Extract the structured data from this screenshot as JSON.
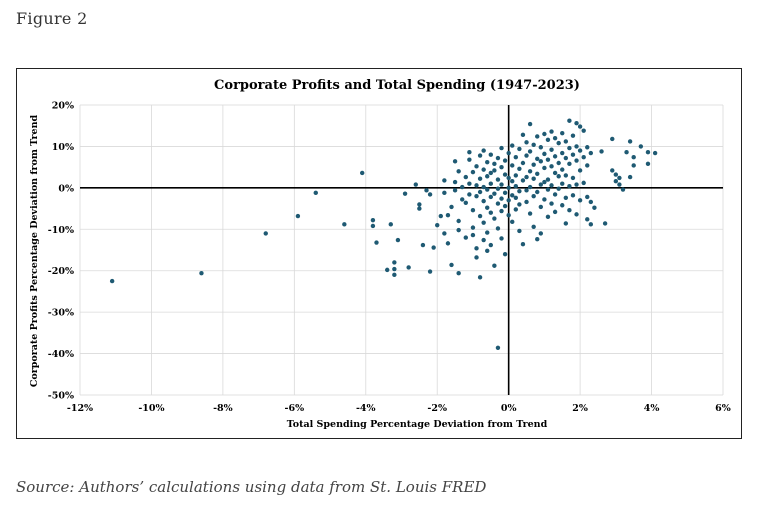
{
  "figure_label": "Figure 2",
  "source_note": "Source: Authors’ calculations using data from St. Louis FRED",
  "colors": {
    "points": "#1f5a73",
    "axis": "#000000",
    "grid": "#d9d9d9"
  },
  "chart_data": {
    "type": "scatter",
    "title": "Corporate Profits and Total Spending (1947-2023)",
    "xlabel": "Total Spending Percentage Deviation from Trend",
    "ylabel": "Corporate Profits Percentage Deviation from Trend",
    "xlim": [
      -12,
      6
    ],
    "ylim": [
      -50,
      20
    ],
    "x_ticks": [
      -12,
      -10,
      -8,
      -6,
      -4,
      -2,
      0,
      2,
      4,
      6
    ],
    "x_tick_labels": [
      "-12%",
      "-10%",
      "-8%",
      "-6%",
      "-4%",
      "-2%",
      "0%",
      "2%",
      "4%",
      "6%"
    ],
    "y_ticks": [
      20,
      10,
      0,
      -10,
      -20,
      -30,
      -40,
      -50
    ],
    "y_tick_labels": [
      "20%",
      "10%",
      "0%",
      "-10%",
      "-20%",
      "-30%",
      "-40%",
      "-50%"
    ],
    "grid": true,
    "points": [
      [
        -11.1,
        -22.5
      ],
      [
        -8.6,
        -20.6
      ],
      [
        -6.8,
        -11.0
      ],
      [
        -5.9,
        -6.8
      ],
      [
        -5.4,
        -1.2
      ],
      [
        -4.6,
        -8.8
      ],
      [
        -4.1,
        3.6
      ],
      [
        -3.8,
        -7.8
      ],
      [
        -3.8,
        -9.2
      ],
      [
        -3.7,
        -13.2
      ],
      [
        -3.3,
        -8.8
      ],
      [
        -3.4,
        -19.8
      ],
      [
        -3.2,
        -18.0
      ],
      [
        -3.2,
        -19.6
      ],
      [
        -3.2,
        -21.0
      ],
      [
        -3.1,
        -12.6
      ],
      [
        -2.9,
        -1.4
      ],
      [
        -2.8,
        -19.2
      ],
      [
        -2.6,
        0.8
      ],
      [
        -2.5,
        -4.0
      ],
      [
        -2.5,
        -5.0
      ],
      [
        -2.4,
        -13.8
      ],
      [
        -2.3,
        -0.6
      ],
      [
        -2.2,
        -1.6
      ],
      [
        -2.2,
        -20.2
      ],
      [
        -2.1,
        -14.4
      ],
      [
        -2.0,
        -9.0
      ],
      [
        -1.9,
        -6.8
      ],
      [
        -1.8,
        1.8
      ],
      [
        -1.8,
        -1.2
      ],
      [
        -1.8,
        -11.0
      ],
      [
        -1.7,
        -6.6
      ],
      [
        -1.7,
        -13.4
      ],
      [
        -1.6,
        -4.6
      ],
      [
        -1.6,
        -18.6
      ],
      [
        -1.5,
        6.4
      ],
      [
        -1.5,
        1.4
      ],
      [
        -1.5,
        -0.6
      ],
      [
        -1.4,
        4.0
      ],
      [
        -1.4,
        -8.0
      ],
      [
        -1.4,
        -10.2
      ],
      [
        -1.4,
        -20.6
      ],
      [
        -1.3,
        0.2
      ],
      [
        -1.3,
        -2.8
      ],
      [
        -1.2,
        2.6
      ],
      [
        -1.2,
        -3.6
      ],
      [
        -1.2,
        -12.0
      ],
      [
        -1.1,
        8.6
      ],
      [
        -1.1,
        6.8
      ],
      [
        -1.1,
        1.0
      ],
      [
        -1.1,
        -1.6
      ],
      [
        -1.0,
        3.8
      ],
      [
        -1.0,
        -5.4
      ],
      [
        -1.0,
        -9.6
      ],
      [
        -1.0,
        -11.4
      ],
      [
        -0.9,
        5.2
      ],
      [
        -0.9,
        0.6
      ],
      [
        -0.9,
        -2.0
      ],
      [
        -0.9,
        -14.6
      ],
      [
        -0.9,
        -16.8
      ],
      [
        -0.8,
        7.8
      ],
      [
        -0.8,
        2.2
      ],
      [
        -0.8,
        -1.0
      ],
      [
        -0.8,
        -6.8
      ],
      [
        -0.8,
        -21.6
      ],
      [
        -0.7,
        9.0
      ],
      [
        -0.7,
        4.4
      ],
      [
        -0.7,
        0.2
      ],
      [
        -0.7,
        -3.2
      ],
      [
        -0.7,
        -8.4
      ],
      [
        -0.7,
        -12.6
      ],
      [
        -0.6,
        6.2
      ],
      [
        -0.6,
        2.8
      ],
      [
        -0.6,
        -0.4
      ],
      [
        -0.6,
        -4.8
      ],
      [
        -0.6,
        -10.8
      ],
      [
        -0.6,
        -15.2
      ],
      [
        -0.5,
        8.0
      ],
      [
        -0.5,
        3.6
      ],
      [
        -0.5,
        1.0
      ],
      [
        -0.5,
        -2.2
      ],
      [
        -0.5,
        -6.0
      ],
      [
        -0.5,
        -13.8
      ],
      [
        -0.4,
        5.8
      ],
      [
        -0.4,
        4.2
      ],
      [
        -0.4,
        -1.4
      ],
      [
        -0.4,
        -7.4
      ],
      [
        -0.4,
        -18.8
      ],
      [
        -0.3,
        7.2
      ],
      [
        -0.3,
        2.0
      ],
      [
        -0.3,
        -0.2
      ],
      [
        -0.3,
        -3.8
      ],
      [
        -0.3,
        -9.8
      ],
      [
        -0.3,
        -38.6
      ],
      [
        -0.2,
        9.6
      ],
      [
        -0.2,
        5.0
      ],
      [
        -0.2,
        0.8
      ],
      [
        -0.2,
        -2.6
      ],
      [
        -0.2,
        -5.6
      ],
      [
        -0.2,
        -12.2
      ],
      [
        -0.1,
        6.6
      ],
      [
        -0.1,
        3.2
      ],
      [
        -0.1,
        -1.2
      ],
      [
        -0.1,
        -4.4
      ],
      [
        -0.1,
        -16.0
      ],
      [
        0.0,
        8.4
      ],
      [
        0.0,
        2.4
      ],
      [
        0.0,
        0.0
      ],
      [
        0.0,
        -3.0
      ],
      [
        0.0,
        -6.6
      ],
      [
        0.1,
        10.2
      ],
      [
        0.1,
        5.4
      ],
      [
        0.1,
        1.6
      ],
      [
        0.1,
        -1.8
      ],
      [
        0.1,
        -8.2
      ],
      [
        0.2,
        7.4
      ],
      [
        0.2,
        3.0
      ],
      [
        0.2,
        0.4
      ],
      [
        0.2,
        -2.4
      ],
      [
        0.2,
        -5.2
      ],
      [
        0.3,
        9.4
      ],
      [
        0.3,
        4.6
      ],
      [
        0.3,
        -0.8
      ],
      [
        0.3,
        -4.0
      ],
      [
        0.3,
        -10.4
      ],
      [
        0.4,
        12.8
      ],
      [
        0.4,
        6.0
      ],
      [
        0.4,
        1.8
      ],
      [
        0.4,
        -13.6
      ],
      [
        0.5,
        11.0
      ],
      [
        0.5,
        7.8
      ],
      [
        0.5,
        2.6
      ],
      [
        0.5,
        -0.6
      ],
      [
        0.5,
        -3.4
      ],
      [
        0.6,
        15.4
      ],
      [
        0.6,
        8.8
      ],
      [
        0.6,
        4.0
      ],
      [
        0.6,
        0.2
      ],
      [
        0.6,
        -6.2
      ],
      [
        0.7,
        10.4
      ],
      [
        0.7,
        5.6
      ],
      [
        0.7,
        2.2
      ],
      [
        0.7,
        -2.0
      ],
      [
        0.7,
        -9.4
      ],
      [
        0.8,
        12.4
      ],
      [
        0.8,
        7.0
      ],
      [
        0.8,
        3.4
      ],
      [
        0.8,
        -1.0
      ],
      [
        0.8,
        -12.4
      ],
      [
        0.9,
        9.8
      ],
      [
        0.9,
        6.4
      ],
      [
        0.9,
        0.8
      ],
      [
        0.9,
        -4.6
      ],
      [
        0.9,
        -11.0
      ],
      [
        1.0,
        13.0
      ],
      [
        1.0,
        8.2
      ],
      [
        1.0,
        4.8
      ],
      [
        1.0,
        1.4
      ],
      [
        1.0,
        -2.8
      ],
      [
        1.1,
        11.6
      ],
      [
        1.1,
        6.8
      ],
      [
        1.1,
        2.0
      ],
      [
        1.1,
        -0.4
      ],
      [
        1.1,
        -7.0
      ],
      [
        1.2,
        13.6
      ],
      [
        1.2,
        9.2
      ],
      [
        1.2,
        5.2
      ],
      [
        1.2,
        0.6
      ],
      [
        1.2,
        -3.8
      ],
      [
        1.3,
        12.0
      ],
      [
        1.3,
        7.6
      ],
      [
        1.3,
        3.6
      ],
      [
        1.3,
        -1.6
      ],
      [
        1.3,
        -5.8
      ],
      [
        1.4,
        10.8
      ],
      [
        1.4,
        6.0
      ],
      [
        1.4,
        2.8
      ],
      [
        1.4,
        -0.2
      ],
      [
        1.5,
        13.2
      ],
      [
        1.5,
        8.4
      ],
      [
        1.5,
        4.4
      ],
      [
        1.5,
        1.0
      ],
      [
        1.5,
        -4.2
      ],
      [
        1.6,
        11.2
      ],
      [
        1.6,
        7.2
      ],
      [
        1.6,
        3.0
      ],
      [
        1.6,
        -2.4
      ],
      [
        1.6,
        -8.6
      ],
      [
        1.7,
        16.2
      ],
      [
        1.7,
        9.6
      ],
      [
        1.7,
        5.8
      ],
      [
        1.7,
        0.4
      ],
      [
        1.7,
        -5.4
      ],
      [
        1.8,
        12.6
      ],
      [
        1.8,
        8.0
      ],
      [
        1.8,
        2.4
      ],
      [
        1.8,
        -1.8
      ],
      [
        1.9,
        15.6
      ],
      [
        1.9,
        10.0
      ],
      [
        1.9,
        6.6
      ],
      [
        1.9,
        0.8
      ],
      [
        1.9,
        -6.4
      ],
      [
        2.0,
        14.8
      ],
      [
        2.0,
        9.0
      ],
      [
        2.0,
        4.2
      ],
      [
        2.0,
        -3.0
      ],
      [
        2.1,
        13.8
      ],
      [
        2.1,
        7.4
      ],
      [
        2.1,
        1.2
      ],
      [
        2.2,
        9.8
      ],
      [
        2.2,
        5.4
      ],
      [
        2.2,
        -2.2
      ],
      [
        2.2,
        -7.6
      ],
      [
        2.3,
        8.4
      ],
      [
        2.3,
        -3.4
      ],
      [
        2.3,
        -8.8
      ],
      [
        2.4,
        -4.8
      ],
      [
        2.6,
        8.8
      ],
      [
        2.7,
        -8.6
      ],
      [
        2.9,
        11.8
      ],
      [
        2.9,
        4.2
      ],
      [
        3.0,
        3.2
      ],
      [
        3.0,
        1.6
      ],
      [
        3.1,
        2.4
      ],
      [
        3.1,
        0.8
      ],
      [
        3.2,
        -0.4
      ],
      [
        3.3,
        8.6
      ],
      [
        3.4,
        11.2
      ],
      [
        3.4,
        2.6
      ],
      [
        3.5,
        5.4
      ],
      [
        3.5,
        7.4
      ],
      [
        3.7,
        10.0
      ],
      [
        3.9,
        8.6
      ],
      [
        3.9,
        5.8
      ],
      [
        4.1,
        8.4
      ]
    ]
  }
}
